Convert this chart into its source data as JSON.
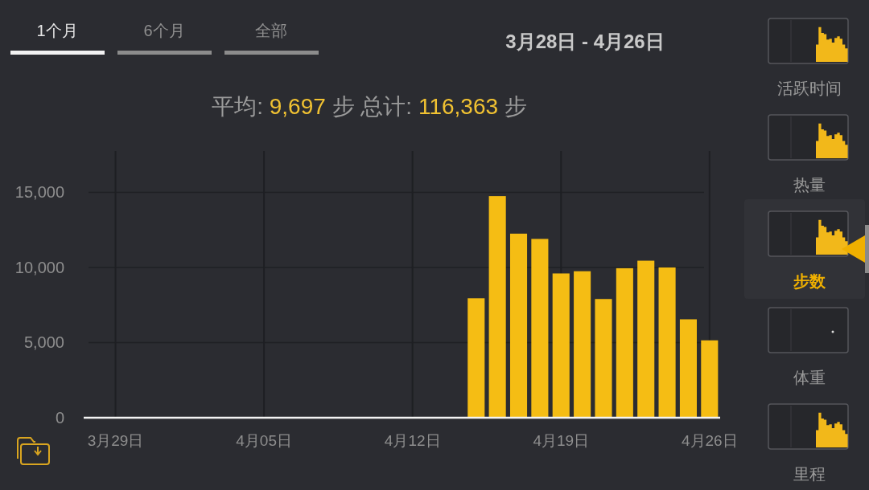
{
  "chart_data": {
    "type": "bar",
    "title": "3月28日 - 4月26日",
    "subtitle": "平均: 9,697 步 总计: 116,363 步",
    "categories": [
      null,
      "3月29日",
      null,
      null,
      null,
      null,
      null,
      null,
      "4月05日",
      null,
      null,
      null,
      null,
      null,
      null,
      "4月12日",
      null,
      null,
      null,
      null,
      null,
      null,
      "4月19日",
      null,
      null,
      null,
      null,
      null,
      null,
      "4月26日"
    ],
    "values": [
      null,
      null,
      null,
      null,
      null,
      null,
      null,
      null,
      null,
      null,
      null,
      null,
      null,
      null,
      null,
      null,
      null,
      null,
      7950,
      14750,
      12250,
      11900,
      9600,
      9750,
      7900,
      9950,
      10450,
      10000,
      6550,
      5150
    ],
    "color": "#f5bd14",
    "ylim": [
      0,
      17750
    ],
    "yticks": [
      0,
      {
        "value": 5000,
        "label": "5,000"
      },
      {
        "value": 10000,
        "label": "10,000"
      },
      {
        "value": 15000,
        "label": "15,000"
      }
    ],
    "grid": true,
    "annotations": [
      "1个月",
      "6个月",
      "全部",
      "活跃时间",
      "热量",
      "步数",
      "体重",
      "里程"
    ]
  }
}
